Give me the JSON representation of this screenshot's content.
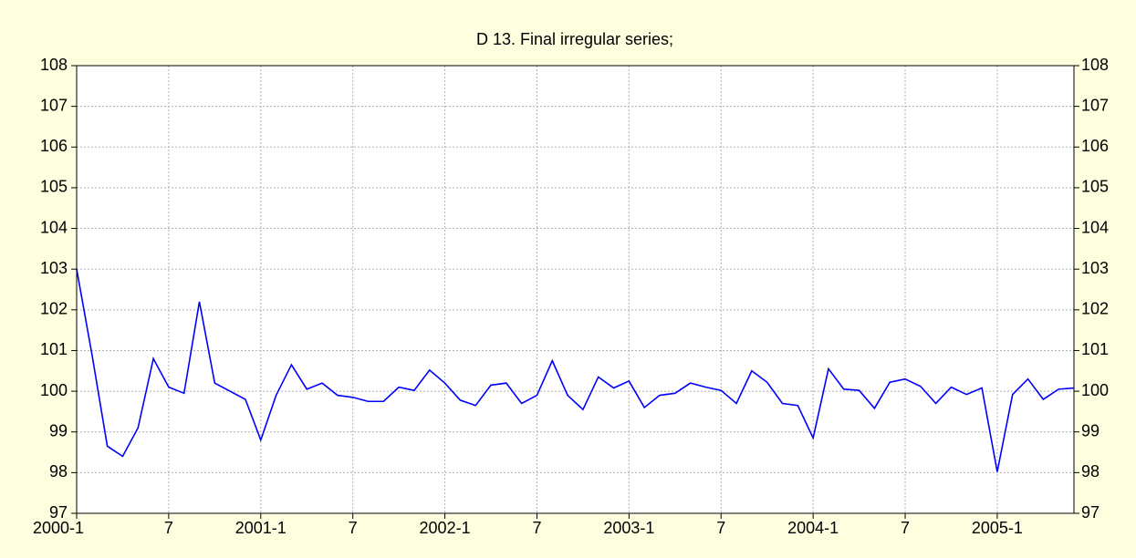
{
  "chart_data": {
    "type": "line",
    "title": "D 13. Final irregular series;",
    "categories": [
      "2000-1",
      null,
      null,
      null,
      null,
      null,
      "7",
      null,
      null,
      null,
      null,
      null,
      "2001-1",
      null,
      null,
      null,
      null,
      null,
      "7",
      null,
      null,
      null,
      null,
      null,
      "2002-1",
      null,
      null,
      null,
      null,
      null,
      "7",
      null,
      null,
      null,
      null,
      null,
      "2003-1",
      null,
      null,
      null,
      null,
      null,
      "7",
      null,
      null,
      null,
      null,
      null,
      "2004-1",
      null,
      null,
      null,
      null,
      null,
      "7",
      null,
      null,
      null,
      null,
      null,
      "2005-1",
      null,
      null,
      null,
      null,
      null
    ],
    "series": [
      {
        "color": "#0000ff",
        "values": [
          103,
          100.9,
          98.65,
          98.4,
          99.1,
          100.8,
          100.1,
          99.95,
          102.2,
          100.2,
          100,
          99.8,
          98.8,
          99.9,
          100.65,
          100.05,
          100.2,
          99.9,
          99.85,
          99.75,
          99.75,
          100.1,
          100.02,
          100.52,
          100.2,
          99.78,
          99.65,
          100.15,
          100.2,
          99.7,
          99.9,
          100.75,
          99.9,
          99.55,
          100.35,
          100.08,
          100.25,
          99.6,
          99.9,
          99.95,
          100.2,
          100.1,
          100.02,
          99.7,
          100.5,
          100.22,
          99.7,
          99.65,
          98.85,
          100.55,
          100.05,
          100.02,
          99.58,
          100.22,
          100.3,
          100.12,
          99.7,
          100.1,
          99.92,
          100.08,
          98.02,
          99.92,
          100.3,
          99.8,
          100.05,
          100.08
        ]
      }
    ],
    "ylim": [
      97,
      108
    ],
    "yticks": [
      97,
      98,
      99,
      100,
      101,
      102,
      103,
      104,
      105,
      106,
      107,
      108
    ],
    "grid": true
  }
}
